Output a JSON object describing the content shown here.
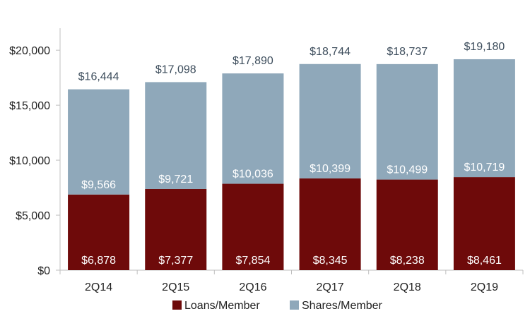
{
  "chart_data": {
    "type": "bar",
    "stacked": true,
    "title": "",
    "xlabel": "",
    "ylabel": "",
    "categories": [
      "2Q14",
      "2Q15",
      "2Q16",
      "2Q17",
      "2Q18",
      "2Q19"
    ],
    "series": [
      {
        "name": "Loans/Member",
        "color": "#6e0a0a",
        "values": [
          6878,
          7377,
          7854,
          8345,
          8238,
          8461
        ],
        "labels": [
          "$6,878",
          "$7,377",
          "$7,854",
          "$8,345",
          "$8,238",
          "$8,461"
        ]
      },
      {
        "name": "Shares/Member",
        "color": "#8fa8ba",
        "values": [
          9566,
          9721,
          10036,
          10399,
          10499,
          10719
        ],
        "labels": [
          "$9,566",
          "$9,721",
          "$10,036",
          "$10,399",
          "$10,499",
          "$10,719"
        ]
      }
    ],
    "totals": [
      16444,
      17098,
      17890,
      18744,
      18737,
      19180
    ],
    "total_labels": [
      "$16,444",
      "$17,098",
      "$17,890",
      "$18,744",
      "$18,737",
      "$19,180"
    ],
    "ylim": [
      0,
      22000
    ],
    "yticks": [
      0,
      5000,
      10000,
      15000,
      20000
    ],
    "ytick_labels": [
      "$0",
      "$5,000",
      "$10,000",
      "$15,000",
      "$20,000"
    ],
    "grid": false,
    "legend_position": "bottom"
  }
}
